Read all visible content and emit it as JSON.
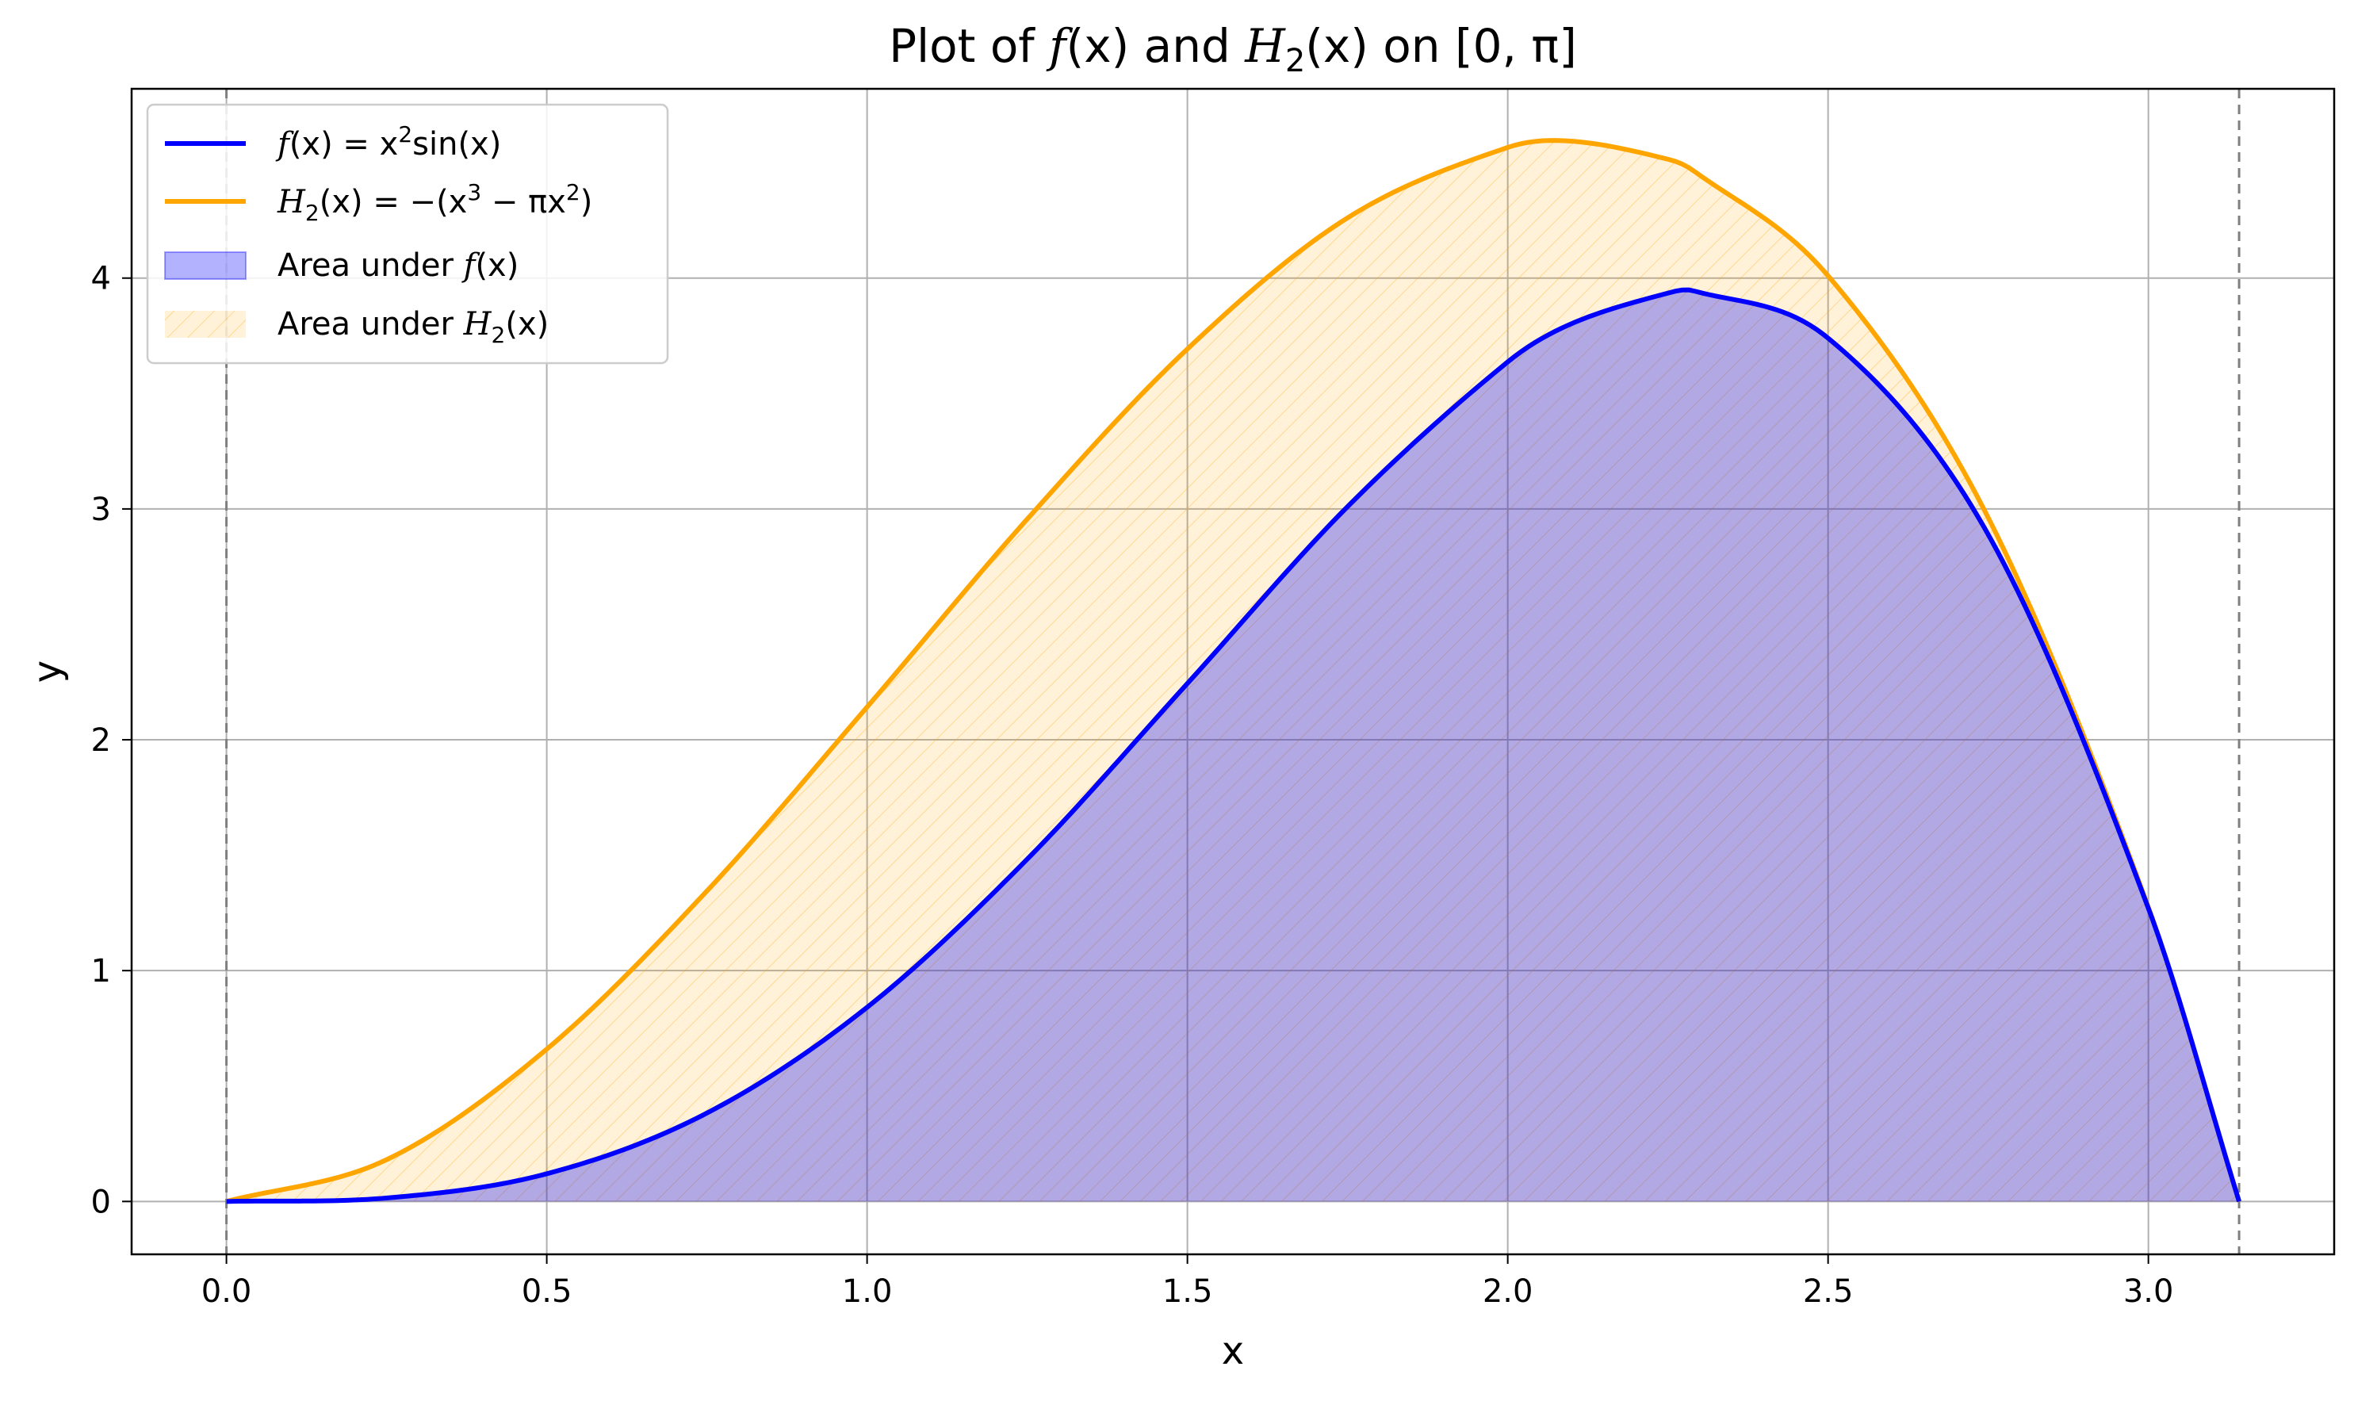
{
  "chart_data": {
    "type": "line",
    "title": {
      "prefix": "Plot of ",
      "f_symbol": "f",
      "f_arg": "(x)",
      "connector": " and ",
      "h_symbol": "H",
      "h_sub": "2",
      "h_arg": "(x)",
      "interval": " on [0, π]"
    },
    "xlabel": "x",
    "ylabel": "y",
    "xlim": [
      -0.148,
      3.29
    ],
    "ylim": [
      -0.229,
      4.82
    ],
    "xticks": [
      0.0,
      0.5,
      1.0,
      1.5,
      2.0,
      2.5,
      3.0
    ],
    "xtick_labels": [
      "0.0",
      "0.5",
      "1.0",
      "1.5",
      "2.0",
      "2.5",
      "3.0"
    ],
    "yticks": [
      0,
      1,
      2,
      3,
      4
    ],
    "ytick_labels": [
      "0",
      "1",
      "2",
      "3",
      "4"
    ],
    "grid": true,
    "legend_position": "top-left",
    "vertical_dashed_lines": [
      0,
      3.14159
    ],
    "domain": [
      0,
      3.14159
    ],
    "samples": [
      {
        "x": 0.0,
        "f": 0.0,
        "h": 0.0
      },
      {
        "x": 0.25,
        "f": 0.015,
        "h": 0.181
      },
      {
        "x": 0.5,
        "f": 0.12,
        "h": 0.66
      },
      {
        "x": 0.75,
        "f": 0.383,
        "h": 1.345
      },
      {
        "x": 1.0,
        "f": 0.841,
        "h": 2.142
      },
      {
        "x": 1.25,
        "f": 1.483,
        "h": 2.956
      },
      {
        "x": 1.5,
        "f": 2.244,
        "h": 3.693
      },
      {
        "x": 1.75,
        "f": 3.01,
        "h": 4.261
      },
      {
        "x": 2.0,
        "f": 3.637,
        "h": 4.566
      },
      {
        "x": 2.1,
        "f": 3.803,
        "h": 4.593
      },
      {
        "x": 2.25,
        "f": 3.935,
        "h": 4.515
      },
      {
        "x": 2.29,
        "f": 3.945,
        "h": 4.465
      },
      {
        "x": 2.5,
        "f": 3.74,
        "h": 4.01
      },
      {
        "x": 2.75,
        "f": 2.889,
        "h": 2.962
      },
      {
        "x": 3.0,
        "f": 1.27,
        "h": 1.274
      },
      {
        "x": 3.14159,
        "f": 0.0,
        "h": 0.0
      }
    ],
    "series": [
      {
        "key": "f",
        "color": "#0000ff",
        "legend": {
          "f": "f",
          "mid": "(x) = x",
          "sup": "2",
          "tail": "sin(x)"
        }
      },
      {
        "key": "h",
        "color": "#ffa500",
        "legend": {
          "h": "H",
          "sub": "2",
          "mid": "(x) = −(x",
          "sup1": "3",
          "dash": " − πx",
          "sup2": "2",
          "tail": ")"
        }
      }
    ],
    "areas": [
      {
        "key": "f",
        "color": "#0000ff",
        "opacity": 0.3,
        "legend": {
          "text": "Area under ",
          "f": "f",
          "arg": "(x)"
        }
      },
      {
        "key": "h",
        "color": "#ffa500",
        "opacity": 0.15,
        "hatch": "diagonal",
        "legend": {
          "text": "Area under ",
          "h": "H",
          "sub": "2",
          "arg": "(x)"
        }
      }
    ]
  }
}
